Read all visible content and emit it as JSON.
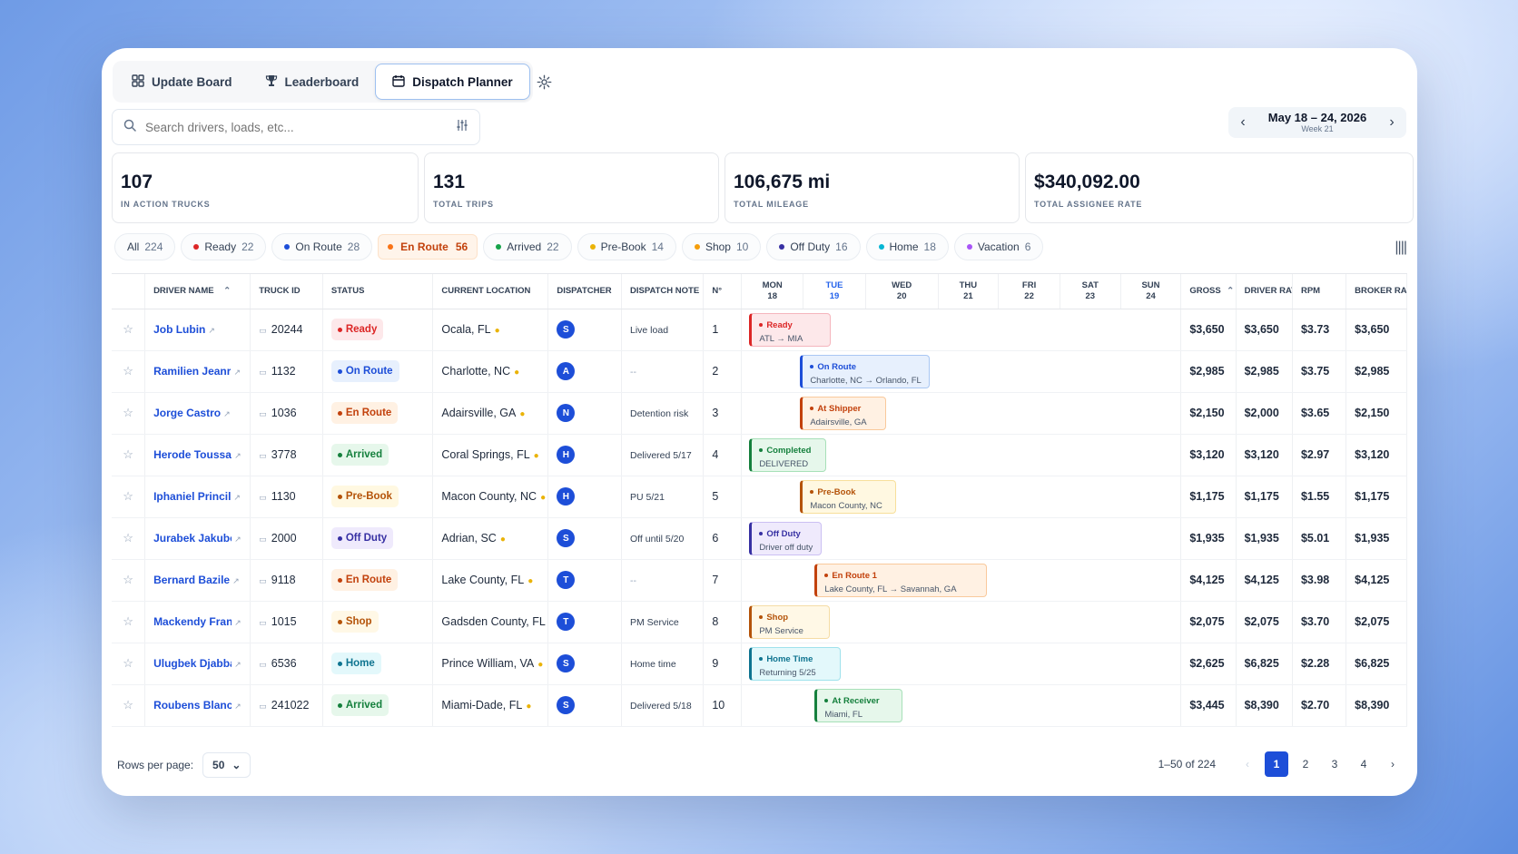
{
  "tabs": [
    {
      "label": "Update Board",
      "icon": "grid-icon",
      "active": false
    },
    {
      "label": "Leaderboard",
      "icon": "trophy-icon",
      "active": false
    },
    {
      "label": "Dispatch Planner",
      "icon": "calendar-icon",
      "active": true
    }
  ],
  "search": {
    "placeholder": "Search drivers, loads, etc..."
  },
  "date_nav": {
    "range": "May 18 – 24, 2026",
    "week": "Week 21"
  },
  "stats": [
    {
      "value": "107",
      "label": "IN ACTION TRUCKS"
    },
    {
      "value": "131",
      "label": "TOTAL TRIPS"
    },
    {
      "value": "106,675 mi",
      "label": "TOTAL MILEAGE"
    },
    {
      "value": "$340,092.00",
      "label": "TOTAL ASSIGNEE RATE"
    }
  ],
  "filters": [
    {
      "label": "All",
      "count": "224",
      "color": ""
    },
    {
      "label": "Ready",
      "count": "22",
      "color": "#dc2626"
    },
    {
      "label": "On Route",
      "count": "28",
      "color": "#1d4ed8"
    },
    {
      "label": "En Route",
      "count": "56",
      "color": "#f97316"
    },
    {
      "label": "Arrived",
      "count": "22",
      "color": "#16a34a"
    },
    {
      "label": "Pre-Book",
      "count": "14",
      "color": "#eab308"
    },
    {
      "label": "Shop",
      "count": "10",
      "color": "#f59e0b"
    },
    {
      "label": "Off Duty",
      "count": "16",
      "color": "#3730a3"
    },
    {
      "label": "Home",
      "count": "18",
      "color": "#06b6d4"
    },
    {
      "label": "Vacation",
      "count": "6",
      "color": "#a855f7"
    }
  ],
  "columns": {
    "driver": "DRIVER NAME",
    "truck": "TRUCK ID",
    "status": "STATUS",
    "location": "CURRENT LOCATION",
    "dispatcher": "DISPATCHER",
    "note": "DISPATCH NOTE",
    "no": "N°",
    "gross": "GROSS",
    "driver_rate": "DRIVER RATE",
    "rpm": "RPM",
    "broker_rate": "BROKER RATE"
  },
  "days": [
    {
      "d": "MON",
      "n": "18"
    },
    {
      "d": "TUE",
      "n": "19"
    },
    {
      "d": "WED",
      "n": "20"
    },
    {
      "d": "THU",
      "n": "21"
    },
    {
      "d": "FRI",
      "n": "22"
    },
    {
      "d": "SAT",
      "n": "23"
    },
    {
      "d": "SUN",
      "n": "24"
    }
  ],
  "rows": [
    {
      "driver": "Job Lubin",
      "truck": "20244",
      "status": "Ready",
      "location": "Ocala, FL",
      "disp": "S",
      "note": "Live load",
      "no": "1",
      "gross": "$3,650",
      "driver_rate": "$3,650",
      "rpm": "$3.73",
      "broker_rate": "$3,650",
      "event": {
        "title": "Ready",
        "sub": "ATL → MIA"
      }
    },
    {
      "driver": "Ramilien Jeanr",
      "truck": "1132",
      "status": "On Route",
      "location": "Charlotte, NC",
      "disp": "A",
      "note": "--",
      "no": "2",
      "gross": "$2,985",
      "driver_rate": "$2,985",
      "rpm": "$3.75",
      "broker_rate": "$2,985",
      "event": {
        "title": "On Route",
        "sub": "Charlotte, NC → Orlando, FL"
      }
    },
    {
      "driver": "Jorge Castro",
      "truck": "1036",
      "status": "En Route",
      "location": "Adairsville, GA",
      "disp": "N",
      "note": "Detention risk",
      "no": "3",
      "gross": "$2,150",
      "driver_rate": "$2,000",
      "rpm": "$3.65",
      "broker_rate": "$2,150",
      "event": {
        "title": "At Shipper",
        "sub": "Adairsville, GA"
      }
    },
    {
      "driver": "Herode Toussaint",
      "truck": "3778",
      "status": "Arrived",
      "location": "Coral Springs, FL",
      "disp": "H",
      "note": "Delivered 5/17",
      "no": "4",
      "gross": "$3,120",
      "driver_rate": "$3,120",
      "rpm": "$2.97",
      "broker_rate": "$3,120",
      "event": {
        "title": "Completed",
        "sub": "DELIVERED"
      }
    },
    {
      "driver": "Iphaniel Princil",
      "truck": "1130",
      "status": "Pre-Book",
      "location": "Macon County, NC",
      "disp": "H",
      "note": "PU 5/21",
      "no": "5",
      "gross": "$1,175",
      "driver_rate": "$1,175",
      "rpm": "$1.55",
      "broker_rate": "$1,175",
      "event": {
        "title": "Pre-Book",
        "sub": "Macon County, NC"
      }
    },
    {
      "driver": "Jurabek Jakubov",
      "truck": "2000",
      "status": "Off Duty",
      "location": "Adrian, SC",
      "disp": "S",
      "note": "Off until 5/20",
      "no": "6",
      "gross": "$1,935",
      "driver_rate": "$1,935",
      "rpm": "$5.01",
      "broker_rate": "$1,935",
      "event": {
        "title": "Off Duty",
        "sub": "Driver off duty"
      }
    },
    {
      "driver": "Bernard Bazile",
      "truck": "9118",
      "status": "En Route",
      "location": "Lake County, FL",
      "disp": "T",
      "note": "--",
      "no": "7",
      "gross": "$4,125",
      "driver_rate": "$4,125",
      "rpm": "$3.98",
      "broker_rate": "$4,125",
      "event": {
        "title": "En Route 1",
        "sub": "Lake County, FL → Savannah, GA"
      }
    },
    {
      "driver": "Mackendy Francoi",
      "truck": "1015",
      "status": "Shop",
      "location": "Gadsden County, FL",
      "disp": "T",
      "note": "PM Service",
      "no": "8",
      "gross": "$2,075",
      "driver_rate": "$2,075",
      "rpm": "$3.70",
      "broker_rate": "$2,075",
      "event": {
        "title": "Shop",
        "sub": "PM Service"
      }
    },
    {
      "driver": "Ulugbek Djabbarov",
      "truck": "6536",
      "status": "Home",
      "location": "Prince William, VA",
      "disp": "S",
      "note": "Home time",
      "no": "9",
      "gross": "$2,625",
      "driver_rate": "$6,825",
      "rpm": "$2.28",
      "broker_rate": "$6,825",
      "event": {
        "title": "Home Time",
        "sub": "Returning 5/25"
      }
    },
    {
      "driver": "Roubens Blanc",
      "truck": "241022",
      "status": "Arrived",
      "location": "Miami-Dade, FL",
      "disp": "S",
      "note": "Delivered 5/18",
      "no": "10",
      "gross": "$3,445",
      "driver_rate": "$8,390",
      "rpm": "$2.70",
      "broker_rate": "$8,390",
      "event": {
        "title": "At Receiver",
        "sub": "Miami, FL"
      }
    }
  ],
  "footer": {
    "rows_label": "Rows per page:",
    "rows_value": "50",
    "range": "1–50 of 224",
    "pages": [
      "1",
      "2",
      "3",
      "4"
    ]
  }
}
